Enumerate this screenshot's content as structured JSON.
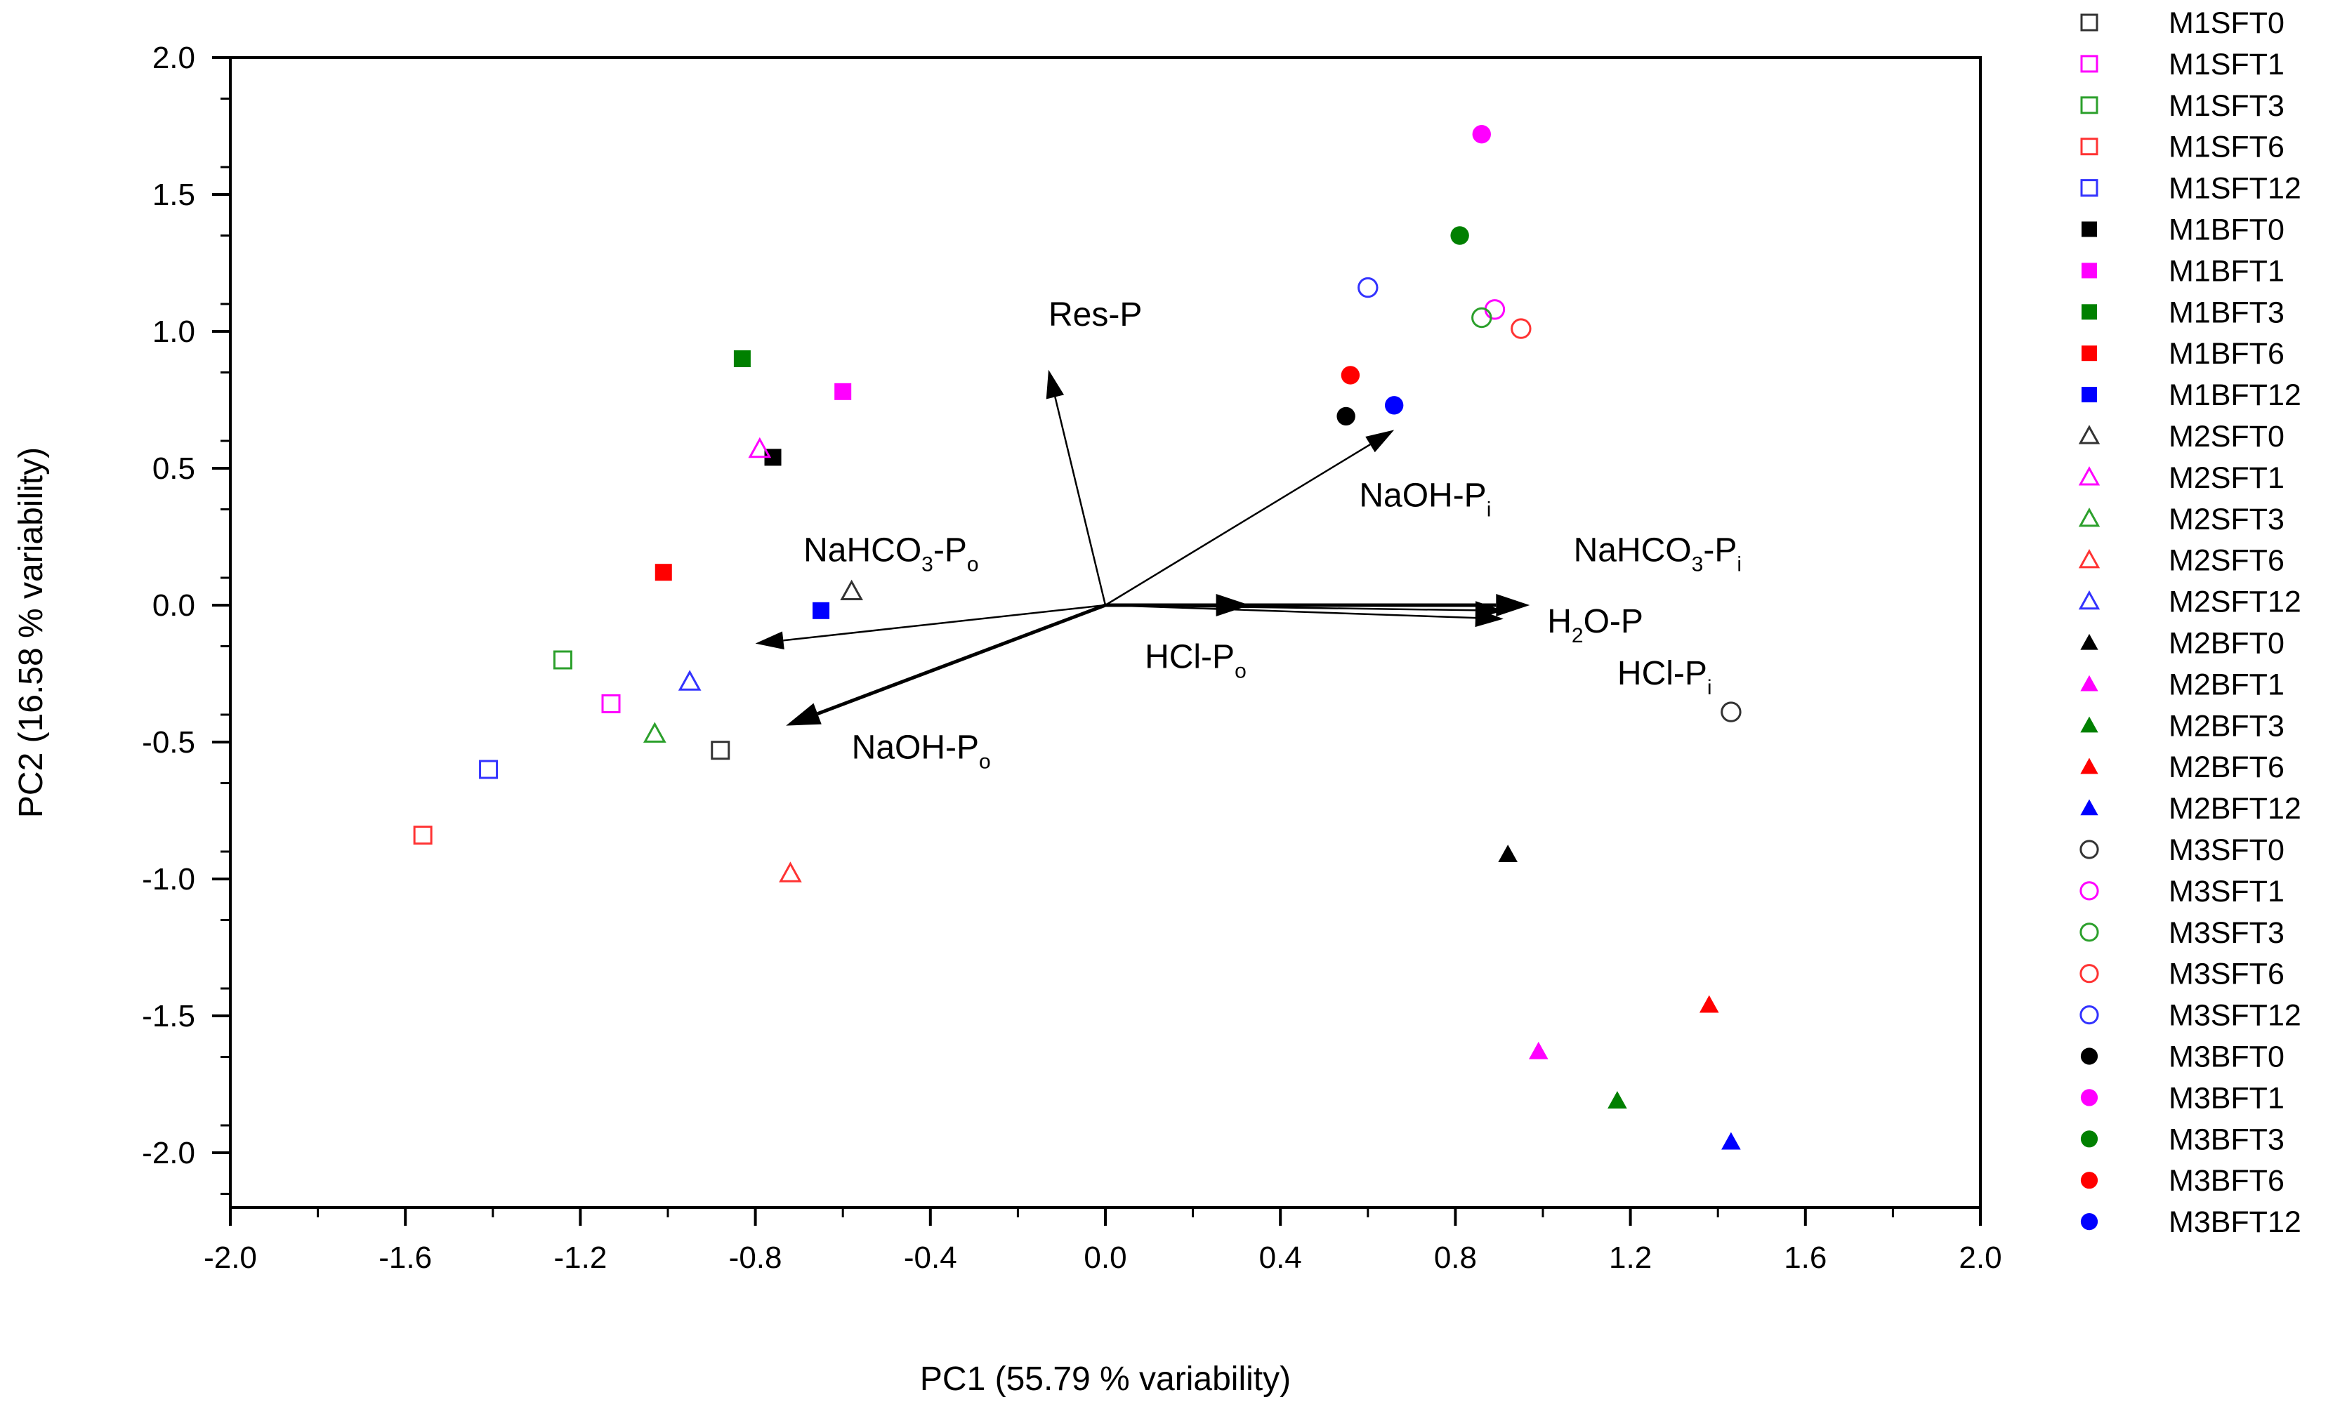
{
  "chart_data": {
    "type": "scatter",
    "subtype": "pca-biplot",
    "title": "",
    "xlabel": "PC1 (55.79 % variability)",
    "ylabel": "PC2 (16.58 % variability)",
    "xlim": [
      -2.0,
      2.0
    ],
    "ylim": [
      -2.2,
      2.0
    ],
    "xticks": [
      -2.0,
      -1.6,
      -1.2,
      -0.8,
      -0.4,
      0.0,
      0.4,
      0.8,
      1.2,
      1.6,
      2.0
    ],
    "xtick_labels": [
      "-2.0",
      "-1.6",
      "-1.2",
      "-0.8",
      "-0.4",
      "0.0",
      "0.4",
      "0.8",
      "1.2",
      "1.6",
      "2.0"
    ],
    "yticks": [
      2.0,
      1.5,
      1.0,
      0.5,
      0.0,
      -0.5,
      -1.0,
      -1.5,
      -2.0
    ],
    "ytick_labels": [
      "2.0",
      "1.5",
      "1.0",
      "0.5",
      "0.0",
      "-0.5",
      "-1.0",
      "-1.5",
      "-2.0"
    ],
    "grid": false,
    "legend_position": "outside-right",
    "series": [
      {
        "name": "M1SFT0",
        "marker": "square",
        "filled": false,
        "color": "#333333",
        "x": -0.88,
        "y": -0.53
      },
      {
        "name": "M1SFT1",
        "marker": "square",
        "filled": false,
        "color": "#ff00ff",
        "x": -1.13,
        "y": -0.36
      },
      {
        "name": "M1SFT3",
        "marker": "square",
        "filled": false,
        "color": "#2ca02c",
        "x": -1.24,
        "y": -0.2
      },
      {
        "name": "M1SFT6",
        "marker": "square",
        "filled": false,
        "color": "#ff3333",
        "x": -1.56,
        "y": -0.84
      },
      {
        "name": "M1SFT12",
        "marker": "square",
        "filled": false,
        "color": "#3333ff",
        "x": -1.41,
        "y": -0.6
      },
      {
        "name": "M1BFT0",
        "marker": "square",
        "filled": true,
        "color": "#000000",
        "x": -0.76,
        "y": 0.54
      },
      {
        "name": "M1BFT1",
        "marker": "square",
        "filled": true,
        "color": "#ff00ff",
        "x": -0.6,
        "y": 0.78
      },
      {
        "name": "M1BFT3",
        "marker": "square",
        "filled": true,
        "color": "#008000",
        "x": -0.83,
        "y": 0.9
      },
      {
        "name": "M1BFT6",
        "marker": "square",
        "filled": true,
        "color": "#ff0000",
        "x": -1.01,
        "y": 0.12
      },
      {
        "name": "M1BFT12",
        "marker": "square",
        "filled": true,
        "color": "#0000ff",
        "x": -0.65,
        "y": -0.02
      },
      {
        "name": "M2SFT0",
        "marker": "triangle",
        "filled": false,
        "color": "#333333",
        "x": -0.58,
        "y": 0.05
      },
      {
        "name": "M2SFT1",
        "marker": "triangle",
        "filled": false,
        "color": "#ff00ff",
        "x": -0.79,
        "y": 0.57
      },
      {
        "name": "M2SFT3",
        "marker": "triangle",
        "filled": false,
        "color": "#2ca02c",
        "x": -1.03,
        "y": -0.47
      },
      {
        "name": "M2SFT6",
        "marker": "triangle",
        "filled": false,
        "color": "#ff3333",
        "x": -0.72,
        "y": -0.98
      },
      {
        "name": "M2SFT12",
        "marker": "triangle",
        "filled": false,
        "color": "#3333ff",
        "x": -0.95,
        "y": -0.28
      },
      {
        "name": "M2BFT0",
        "marker": "triangle",
        "filled": true,
        "color": "#000000",
        "x": 0.92,
        "y": -0.91
      },
      {
        "name": "M2BFT1",
        "marker": "triangle",
        "filled": true,
        "color": "#ff00ff",
        "x": 0.99,
        "y": -1.63
      },
      {
        "name": "M2BFT3",
        "marker": "triangle",
        "filled": true,
        "color": "#008000",
        "x": 1.17,
        "y": -1.81
      },
      {
        "name": "M2BFT6",
        "marker": "triangle",
        "filled": true,
        "color": "#ff0000",
        "x": 1.38,
        "y": -1.46
      },
      {
        "name": "M2BFT12",
        "marker": "triangle",
        "filled": true,
        "color": "#0000ff",
        "x": 1.43,
        "y": -1.96
      },
      {
        "name": "M3SFT0",
        "marker": "circle",
        "filled": false,
        "color": "#333333",
        "x": 1.43,
        "y": -0.39
      },
      {
        "name": "M3SFT1",
        "marker": "circle",
        "filled": false,
        "color": "#ff00ff",
        "x": 0.89,
        "y": 1.08
      },
      {
        "name": "M3SFT3",
        "marker": "circle",
        "filled": false,
        "color": "#2ca02c",
        "x": 0.86,
        "y": 1.05
      },
      {
        "name": "M3SFT6",
        "marker": "circle",
        "filled": false,
        "color": "#ff3333",
        "x": 0.95,
        "y": 1.01
      },
      {
        "name": "M3SFT12",
        "marker": "circle",
        "filled": false,
        "color": "#3333ff",
        "x": 0.6,
        "y": 1.16
      },
      {
        "name": "M3BFT0",
        "marker": "circle",
        "filled": true,
        "color": "#000000",
        "x": 0.55,
        "y": 0.69
      },
      {
        "name": "M3BFT1",
        "marker": "circle",
        "filled": true,
        "color": "#ff00ff",
        "x": 0.86,
        "y": 1.72
      },
      {
        "name": "M3BFT3",
        "marker": "circle",
        "filled": true,
        "color": "#008000",
        "x": 0.81,
        "y": 1.35
      },
      {
        "name": "M3BFT6",
        "marker": "circle",
        "filled": true,
        "color": "#ff0000",
        "x": 0.56,
        "y": 0.84
      },
      {
        "name": "M3BFT12",
        "marker": "circle",
        "filled": true,
        "color": "#0000ff",
        "x": 0.66,
        "y": 0.73
      }
    ],
    "vectors": [
      {
        "name": "Res-P",
        "x": -0.13,
        "y": 0.86,
        "bold": false
      },
      {
        "name": "NaOH-Pi",
        "x": 0.66,
        "y": 0.64,
        "bold": false
      },
      {
        "name": "NaHCO3-Pi",
        "x": 0.97,
        "y": 0.0,
        "bold": true
      },
      {
        "name": "H2O-P",
        "x": 0.91,
        "y": -0.02,
        "bold": false
      },
      {
        "name": "HCl-Pi",
        "x": 0.91,
        "y": -0.05,
        "bold": false
      },
      {
        "name": "HCl-Po",
        "x": 0.33,
        "y": 0.0,
        "bold": true
      },
      {
        "name": "NaHCO3-Po",
        "x": -0.8,
        "y": -0.14,
        "bold": false
      },
      {
        "name": "NaOH-Po",
        "x": -0.73,
        "y": -0.44,
        "bold": true
      }
    ],
    "vector_labels": [
      {
        "base": "Res-P",
        "sub": "",
        "tail": "",
        "x": -0.13,
        "y": 1.02
      },
      {
        "base": "NaOH-P",
        "sub": "i",
        "tail": "",
        "x": 0.58,
        "y": 0.36
      },
      {
        "base": "NaHCO",
        "sub": "3",
        "tail": "-P",
        "sub2": "i",
        "x": 1.07,
        "y": 0.16
      },
      {
        "base": "H",
        "sub": "2",
        "tail": "O-P",
        "x": 1.01,
        "y": -0.1
      },
      {
        "base": "HCl-P",
        "sub": "i",
        "tail": "",
        "x": 1.17,
        "y": -0.29
      },
      {
        "base": "HCl-P",
        "sub": "o",
        "tail": "",
        "x": 0.09,
        "y": -0.23
      },
      {
        "base": "NaHCO",
        "sub": "3",
        "tail": "-P",
        "sub2": "o",
        "x": -0.69,
        "y": 0.16
      },
      {
        "base": "NaOH-P",
        "sub": "o",
        "tail": "",
        "x": -0.58,
        "y": -0.56
      }
    ]
  }
}
